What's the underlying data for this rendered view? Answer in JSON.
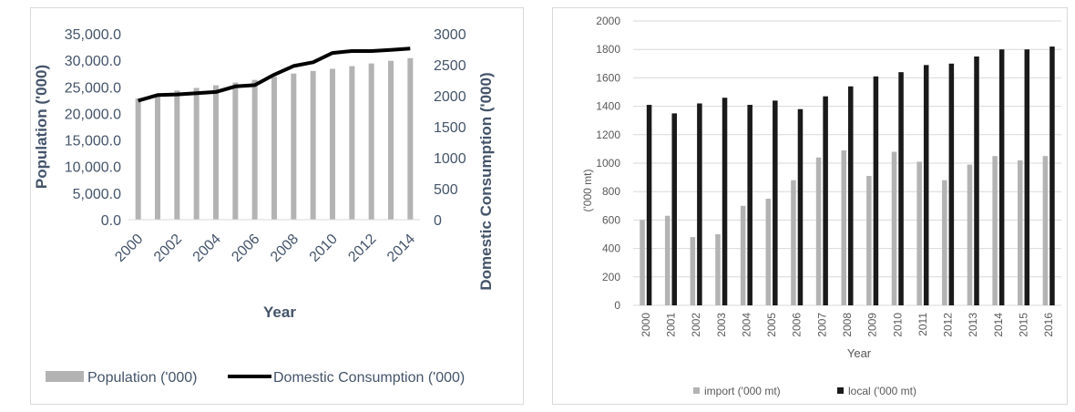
{
  "chart_data": [
    {
      "type": "bar+line",
      "xlabel": "Year",
      "ylabel": "Population ('000)",
      "y2label": "Domestic Consumption ('000)",
      "ylim": [
        0,
        35000
      ],
      "y2lim": [
        0,
        3000
      ],
      "yticks": [
        "0.0",
        "5,000.0",
        "10,000.0",
        "15,000.0",
        "20,000.0",
        "25,000.0",
        "30,000.0",
        "35,000.0"
      ],
      "y2ticks": [
        "0",
        "500",
        "1000",
        "1500",
        "2000",
        "2500",
        "3000"
      ],
      "categories": [
        2000,
        2001,
        2002,
        2003,
        2004,
        2005,
        2006,
        2007,
        2008,
        2009,
        2010,
        2011,
        2012,
        2013,
        2014
      ],
      "xtick_labels": [
        "2000",
        "2002",
        "2004",
        "2006",
        "2008",
        "2010",
        "2012",
        "2014"
      ],
      "series": [
        {
          "name": "Population ('000)",
          "kind": "bar",
          "axis": "left",
          "color": "#b3b3b3",
          "values": [
            22800,
            23600,
            24300,
            24800,
            25300,
            25800,
            26300,
            26900,
            27500,
            28000,
            28400,
            28900,
            29400,
            29900,
            30400
          ]
        },
        {
          "name": "Domestic Consumption ('000)",
          "kind": "line",
          "axis": "right",
          "color": "#000000",
          "values": [
            1920,
            2010,
            2020,
            2040,
            2060,
            2150,
            2170,
            2340,
            2480,
            2540,
            2690,
            2720,
            2720,
            2740,
            2760
          ]
        }
      ],
      "grid": false,
      "legend": "bottom"
    },
    {
      "type": "bar",
      "xlabel": "Year",
      "ylabel": "('000 mt)",
      "ylim": [
        0,
        2000
      ],
      "yticks": [
        "0",
        "200",
        "400",
        "600",
        "800",
        "1000",
        "1200",
        "1400",
        "1600",
        "1800",
        "2000"
      ],
      "categories": [
        "2000",
        "2001",
        "2002",
        "2003",
        "2004",
        "2005",
        "2006",
        "2007",
        "2008",
        "2009",
        "2010",
        "2011",
        "2012",
        "2013",
        "2014",
        "2015",
        "2016"
      ],
      "series": [
        {
          "name": "import ('000 mt)",
          "color": "#b3b3b3",
          "values": [
            600,
            630,
            480,
            500,
            700,
            750,
            880,
            1040,
            1090,
            910,
            1080,
            1010,
            880,
            990,
            1050,
            1020,
            1050
          ]
        },
        {
          "name": "local ('000 mt)",
          "color": "#1a1a1a",
          "values": [
            1410,
            1350,
            1420,
            1460,
            1410,
            1440,
            1380,
            1470,
            1540,
            1610,
            1640,
            1690,
            1700,
            1750,
            1800,
            1800,
            1820
          ]
        }
      ],
      "grid": true,
      "legend": "bottom"
    }
  ]
}
